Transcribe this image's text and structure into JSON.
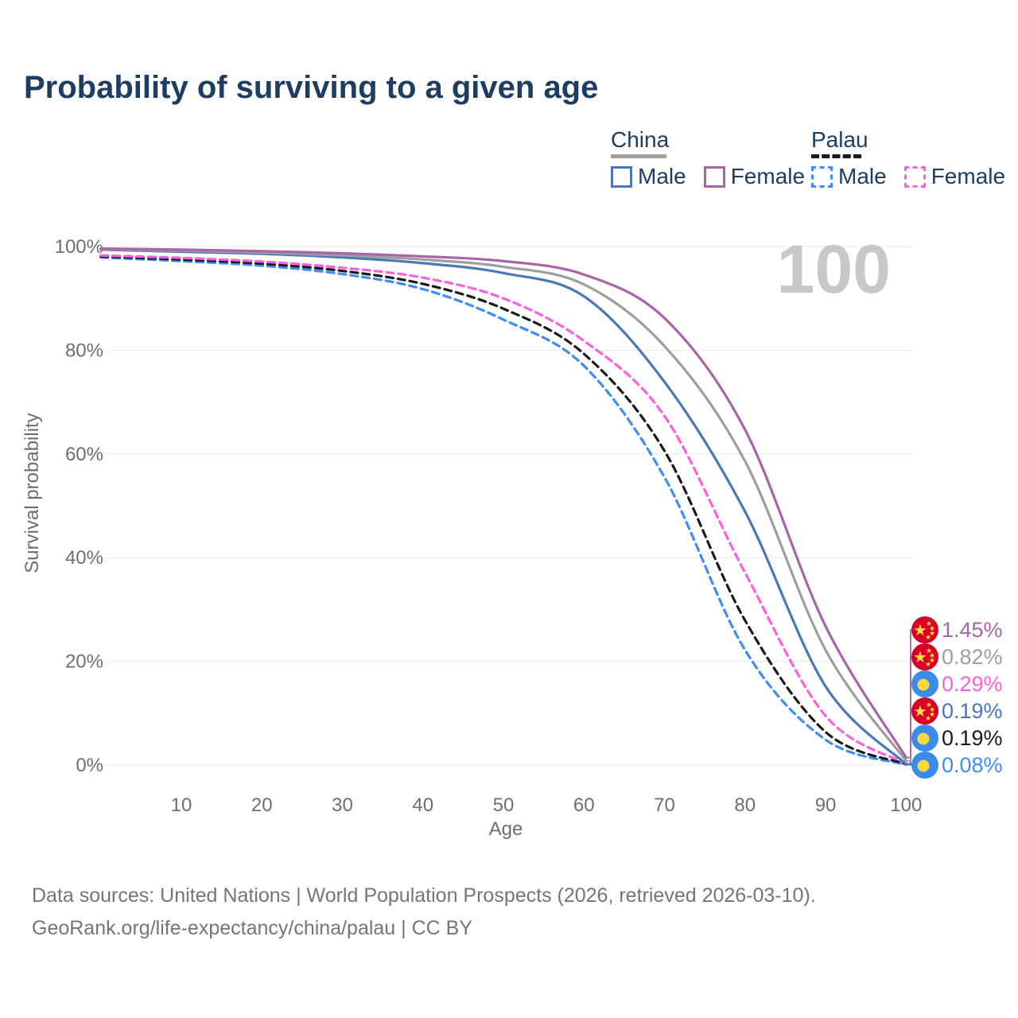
{
  "page": {
    "title": "Probability of surviving to a given age"
  },
  "legend": {
    "groups": [
      {
        "title": "China",
        "line_style": "solid",
        "line_color": "#9e9e9e",
        "items": [
          {
            "label": "Male",
            "color": "#4a77b6",
            "style": "solid"
          },
          {
            "label": "Female",
            "color": "#a864a8",
            "style": "solid"
          }
        ]
      },
      {
        "title": "Palau",
        "line_style": "dashed",
        "line_color": "#1a1a1a",
        "items": [
          {
            "label": "Male",
            "color": "#3e8df6",
            "style": "dashed"
          },
          {
            "label": "Female",
            "color": "#fc60dc",
            "style": "dashed"
          }
        ]
      }
    ]
  },
  "flags": {
    "china": {
      "bg": "#d80027",
      "star": "#ffda44"
    },
    "palau": {
      "bg": "#3a8ceb",
      "disc": "#ffd83d"
    }
  },
  "chart_data": {
    "type": "line",
    "title": "Probability of surviving to a given age",
    "xlabel": "Age",
    "ylabel": "Survival probability",
    "unit": "%",
    "xlim": [
      0,
      100
    ],
    "ylim": [
      0,
      100
    ],
    "grid": "horizontal",
    "legend_position": "top-right",
    "hover_age_watermark": "100",
    "x": [
      0,
      10,
      20,
      30,
      40,
      50,
      60,
      70,
      80,
      90,
      100
    ],
    "x_ticks": [
      10,
      20,
      30,
      40,
      50,
      60,
      70,
      80,
      90,
      100
    ],
    "y_tick_values": [
      0,
      20,
      40,
      60,
      80,
      100
    ],
    "y_ticks": [
      "0%",
      "20%",
      "40%",
      "60%",
      "80%",
      "100%"
    ],
    "series": [
      {
        "id": "palau-male",
        "name": "Palau Male",
        "country": "Palau",
        "sex": "Male",
        "color": "#3e8df6",
        "dash": true,
        "values": [
          97.9,
          97.2,
          96.3,
          94.7,
          91.8,
          85.9,
          77.0,
          55.5,
          22.2,
          4.9,
          0.08
        ],
        "end_label": "0.08%",
        "flag": "palau",
        "label_slot": 5
      },
      {
        "id": "palau-overall",
        "name": "Palau Overall",
        "country": "Palau",
        "sex": "Both",
        "color": "#1a1a1a",
        "dash": true,
        "values": [
          98.1,
          97.5,
          96.7,
          95.3,
          92.8,
          88.0,
          79.3,
          60.6,
          27.9,
          6.4,
          0.19
        ],
        "end_label": "0.19%",
        "flag": "palau",
        "label_slot": 4
      },
      {
        "id": "palau-female",
        "name": "Palau Female",
        "country": "Palau",
        "sex": "Female",
        "color": "#fc60dc",
        "dash": true,
        "values": [
          98.3,
          97.8,
          97.1,
          95.9,
          94.0,
          90.0,
          81.8,
          67.3,
          37.1,
          9.5,
          0.29
        ],
        "end_label": "0.29%",
        "flag": "palau",
        "label_slot": 2
      },
      {
        "id": "china-male",
        "name": "China Male",
        "country": "China",
        "sex": "Male",
        "color": "#4a77b6",
        "dash": false,
        "values": [
          99.4,
          99.0,
          98.6,
          97.9,
          96.8,
          94.9,
          90.4,
          73.9,
          48.9,
          15.2,
          0.19
        ],
        "end_label": "0.19%",
        "flag": "china",
        "label_slot": 3
      },
      {
        "id": "china-overall",
        "name": "China Overall",
        "country": "China",
        "sex": "Both",
        "color": "#9e9e9e",
        "dash": false,
        "values": [
          99.5,
          99.2,
          98.8,
          98.3,
          97.5,
          96.1,
          92.7,
          80.8,
          58.6,
          22.2,
          0.82
        ],
        "end_label": "0.82%",
        "flag": "china",
        "label_slot": 1
      },
      {
        "id": "china-female",
        "name": "China Female",
        "country": "China",
        "sex": "Female",
        "color": "#a864a8",
        "dash": false,
        "values": [
          99.6,
          99.4,
          99.1,
          98.7,
          98.1,
          97.2,
          94.6,
          86.2,
          64.7,
          26.8,
          1.45
        ],
        "end_label": "1.45%",
        "flag": "china",
        "label_slot": 0
      }
    ]
  },
  "footer": {
    "line1": "Data sources: United Nations | World Population Prospects (2026, retrieved 2026-03-10).",
    "line2": "GeoRank.org/life-expectancy/china/palau | CC BY"
  }
}
